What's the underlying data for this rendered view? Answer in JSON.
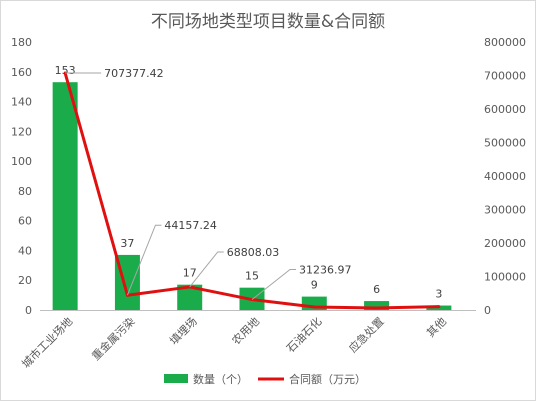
{
  "chart_data": {
    "type": "bar+line",
    "title": "不同场地类型项目数量&合同额",
    "categories": [
      "城市工业场地",
      "重金属污染",
      "填埋场",
      "农用地",
      "石油石化",
      "应急处置",
      "其他"
    ],
    "series": [
      {
        "name": "数量（个）",
        "type": "bar",
        "axis": "left",
        "values": [
          153,
          37,
          17,
          15,
          9,
          6,
          3
        ],
        "labels": [
          "153",
          "37",
          "17",
          "15",
          "9",
          "6",
          "3"
        ]
      },
      {
        "name": "合同额（万元）",
        "type": "line",
        "axis": "right",
        "values": [
          707377.42,
          44157.24,
          68808.03,
          31236.97,
          9000,
          6000,
          10000
        ],
        "labels": [
          "707377.42",
          "44157.24",
          "68808.03",
          "31236.97",
          "",
          "",
          ""
        ]
      }
    ],
    "y_left": {
      "min": 0,
      "max": 180,
      "ticks": [
        "0",
        "20",
        "40",
        "60",
        "80",
        "100",
        "120",
        "140",
        "160",
        "180"
      ]
    },
    "y_right": {
      "min": 0,
      "max": 800000,
      "ticks": [
        "0",
        "100000",
        "200000",
        "300000",
        "400000",
        "500000",
        "600000",
        "700000",
        "800000"
      ]
    },
    "grid": false,
    "legend_position": "bottom",
    "colors": {
      "bar": "#1aac4b",
      "line": "#e01010",
      "axis": "#bfbfbf",
      "leader": "#a6a6a6"
    }
  }
}
